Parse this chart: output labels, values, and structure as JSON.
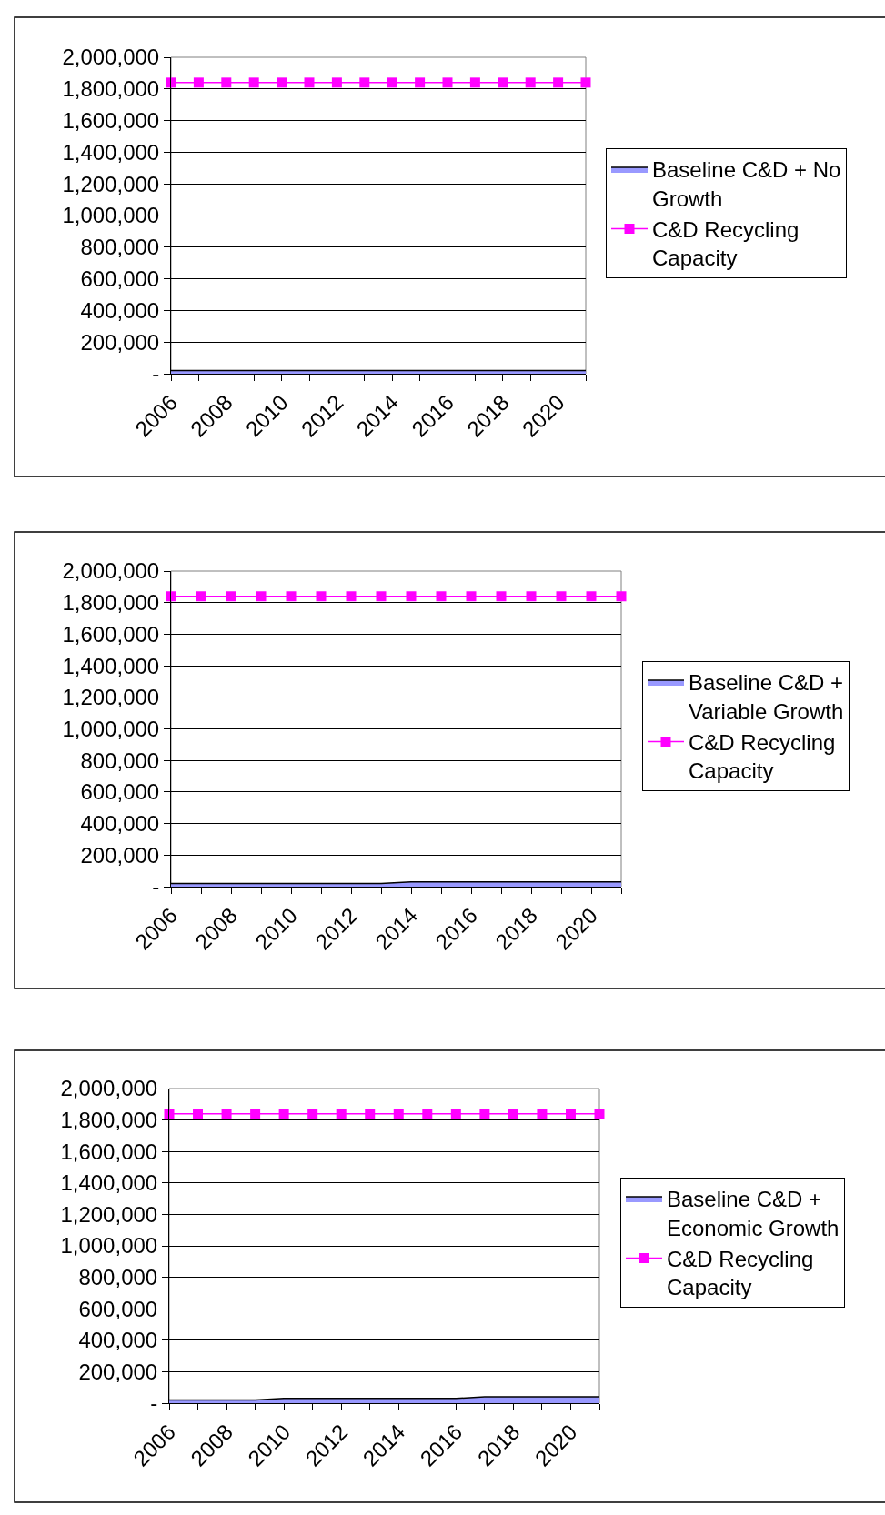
{
  "chart_data": [
    {
      "type": "area",
      "categories": [
        "2006",
        null,
        "2008",
        null,
        "2010",
        null,
        "2012",
        null,
        "2014",
        null,
        "2016",
        null,
        "2018",
        null,
        "2020",
        null
      ],
      "series": [
        {
          "name": "Baseline C&D + No Growth",
          "color": "#9999ff",
          "values": [
            20000,
            20000,
            20000,
            20000,
            20000,
            20000,
            20000,
            20000,
            20000,
            20000,
            20000,
            20000,
            20000,
            20000,
            20000,
            20000
          ]
        },
        {
          "name": "C&D Recycling Capacity",
          "type": "line",
          "color": "#ff00ff",
          "marker": "square",
          "values": [
            1840000,
            1840000,
            1840000,
            1840000,
            1840000,
            1840000,
            1840000,
            1840000,
            1840000,
            1840000,
            1840000,
            1840000,
            1840000,
            1840000,
            1840000,
            1840000
          ]
        }
      ],
      "ylim": [
        0,
        2000000
      ],
      "yticks": [
        {
          "value": 0,
          "label": "-"
        },
        {
          "value": 200000,
          "label": "200,000"
        },
        {
          "value": 400000,
          "label": "400,000"
        },
        {
          "value": 600000,
          "label": "600,000"
        },
        {
          "value": 800000,
          "label": "800,000"
        },
        {
          "value": 1000000,
          "label": "1,000,000"
        },
        {
          "value": 1200000,
          "label": "1,200,000"
        },
        {
          "value": 1400000,
          "label": "1,400,000"
        },
        {
          "value": 1600000,
          "label": "1,600,000"
        },
        {
          "value": 1800000,
          "label": "1,800,000"
        },
        {
          "value": 2000000,
          "label": "2,000,000"
        }
      ],
      "grid": "y",
      "legend": "right"
    },
    {
      "type": "area",
      "categories": [
        "2006",
        null,
        "2008",
        null,
        "2010",
        null,
        "2012",
        null,
        "2014",
        null,
        "2016",
        null,
        "2018",
        null,
        "2020",
        null
      ],
      "series": [
        {
          "name": "Baseline C&D + Variable Growth",
          "color": "#9999ff",
          "values": [
            20000,
            20000,
            20000,
            20000,
            20000,
            20000,
            20000,
            20000,
            30000,
            30000,
            30000,
            30000,
            30000,
            30000,
            30000,
            30000
          ]
        },
        {
          "name": "C&D Recycling Capacity",
          "type": "line",
          "color": "#ff00ff",
          "marker": "square",
          "values": [
            1840000,
            1840000,
            1840000,
            1840000,
            1840000,
            1840000,
            1840000,
            1840000,
            1840000,
            1840000,
            1840000,
            1840000,
            1840000,
            1840000,
            1840000,
            1840000
          ]
        }
      ],
      "ylim": [
        0,
        2000000
      ],
      "yticks": [
        {
          "value": 0,
          "label": "-"
        },
        {
          "value": 200000,
          "label": "200,000"
        },
        {
          "value": 400000,
          "label": "400,000"
        },
        {
          "value": 600000,
          "label": "600,000"
        },
        {
          "value": 800000,
          "label": "800,000"
        },
        {
          "value": 1000000,
          "label": "1,000,000"
        },
        {
          "value": 1200000,
          "label": "1,200,000"
        },
        {
          "value": 1400000,
          "label": "1,400,000"
        },
        {
          "value": 1600000,
          "label": "1,600,000"
        },
        {
          "value": 1800000,
          "label": "1,800,000"
        },
        {
          "value": 2000000,
          "label": "2,000,000"
        }
      ],
      "grid": "y",
      "legend": "right"
    },
    {
      "type": "area",
      "categories": [
        "2006",
        null,
        "2008",
        null,
        "2010",
        null,
        "2012",
        null,
        "2014",
        null,
        "2016",
        null,
        "2018",
        null,
        "2020",
        null
      ],
      "series": [
        {
          "name": "Baseline C&D + Economic Growth",
          "color": "#9999ff",
          "values": [
            20000,
            20000,
            20000,
            20000,
            30000,
            30000,
            30000,
            30000,
            30000,
            30000,
            30000,
            40000,
            40000,
            40000,
            40000,
            40000
          ]
        },
        {
          "name": "C&D Recycling Capacity",
          "type": "line",
          "color": "#ff00ff",
          "marker": "square",
          "values": [
            1840000,
            1840000,
            1840000,
            1840000,
            1840000,
            1840000,
            1840000,
            1840000,
            1840000,
            1840000,
            1840000,
            1840000,
            1840000,
            1840000,
            1840000,
            1840000
          ]
        }
      ],
      "ylim": [
        0,
        2000000
      ],
      "yticks": [
        {
          "value": 0,
          "label": "-"
        },
        {
          "value": 200000,
          "label": "200,000"
        },
        {
          "value": 400000,
          "label": "400,000"
        },
        {
          "value": 600000,
          "label": "600,000"
        },
        {
          "value": 800000,
          "label": "800,000"
        },
        {
          "value": 1000000,
          "label": "1,000,000"
        },
        {
          "value": 1200000,
          "label": "1,200,000"
        },
        {
          "value": 1400000,
          "label": "1,400,000"
        },
        {
          "value": 1600000,
          "label": "1,600,000"
        },
        {
          "value": 1800000,
          "label": "1,800,000"
        },
        {
          "value": 2000000,
          "label": "2,000,000"
        }
      ],
      "grid": "y",
      "legend": "right"
    }
  ]
}
